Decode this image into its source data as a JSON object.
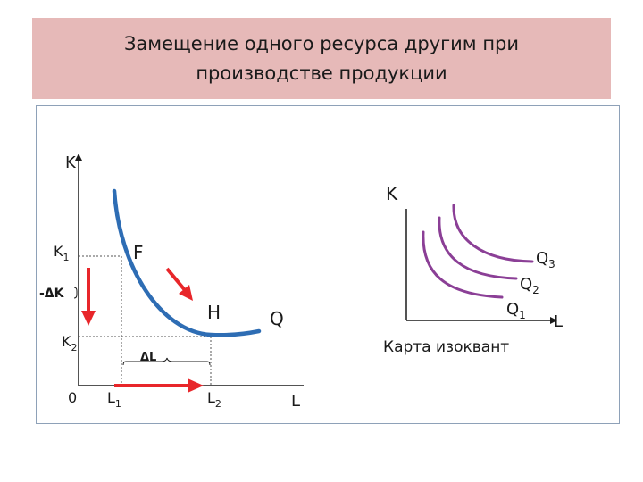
{
  "title": {
    "line1": "Замещение одного ресурса другим при",
    "line2": "производстве продукции"
  },
  "left_diagram": {
    "y_axis_label": "K",
    "x_axis_label": "L",
    "origin_label": "0",
    "k1": {
      "base": "K",
      "sub": "1"
    },
    "k2": {
      "base": "K",
      "sub": "2"
    },
    "l1": {
      "base": "L",
      "sub": "1"
    },
    "l2": {
      "base": "L",
      "sub": "2"
    },
    "delta_k": "-ΔK",
    "delta_l": "ΔL",
    "point_f": "F",
    "point_h": "H",
    "curve_label": "Q",
    "curve_color": "#2e6db4",
    "arrow_color": "#e8262a"
  },
  "right_diagram": {
    "y_axis_label": "K",
    "x_axis_label": "L",
    "caption": "Карта изоквант",
    "curve_color": "#8b3f96",
    "q1": {
      "base": "Q",
      "sub": "1"
    },
    "q2": {
      "base": "Q",
      "sub": "2"
    },
    "q3": {
      "base": "Q",
      "sub": "3"
    }
  }
}
